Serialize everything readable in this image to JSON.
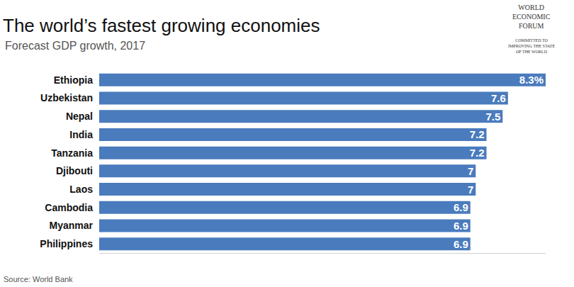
{
  "chart_data": {
    "type": "bar",
    "title": "The world’s fastest growing economies",
    "subtitle": "Forecast GDP growth, 2017",
    "source": "Source: World Bank",
    "logo": [
      "WORLD",
      "ECONOMIC",
      "FORUM"
    ],
    "logo_tagline": [
      "COMMITTED TO",
      "IMPROVING THE STATE",
      "OF THE WORLD"
    ],
    "orientation": "horizontal",
    "categories": [
      "Ethiopia",
      "Uzbekistan",
      "Nepal",
      "India",
      "Tanzania",
      "Djibouti",
      "Laos",
      "Cambodia",
      "Myanmar",
      "Philippines"
    ],
    "values": [
      8.3,
      7.6,
      7.5,
      7.2,
      7.2,
      7,
      7,
      6.9,
      6.9,
      6.9
    ],
    "value_labels": [
      "8.3%",
      "7.6",
      "7.5",
      "7.2",
      "7.2",
      "7",
      "7",
      "6.9",
      "6.9",
      "6.9"
    ],
    "data_labels": true,
    "color": "#4a7bbd",
    "xlim": [
      0,
      8.3
    ],
    "tick_labels": "y",
    "grid": false
  }
}
